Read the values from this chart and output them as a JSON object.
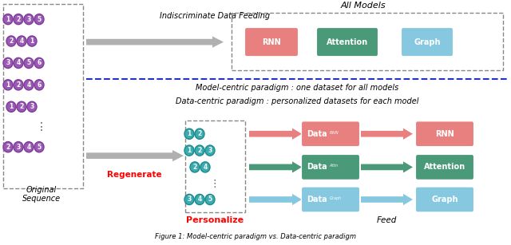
{
  "bg_color": "#ffffff",
  "fig_width": 6.4,
  "fig_height": 3.07,
  "node_color_purple": "#9b59b6",
  "node_border_purple": "#7d3c98",
  "node_color_teal": "#3aacb0",
  "node_border_teal": "#1a8a8d",
  "node_text_color": "#ffffff",
  "box_rnn_color": "#e88080",
  "box_attention_color": "#4a9a7a",
  "box_graph_color": "#85c8e0",
  "box_text_color": "#ffffff",
  "arrow_gray": "#b0b0b0",
  "arrow_pink": "#e88080",
  "arrow_green": "#4a9a7a",
  "arrow_blue": "#85c8e0",
  "dashed_border_color": "#888888",
  "divider_color": "#2233cc",
  "label_all_models": "All Models",
  "label_model_centric": "Model-centric paradigm : one dataset for all models",
  "label_data_centric": "Data-centric paradigm : personalized datasets for each model",
  "label_indiscriminate": "Indiscriminate Data Feeding",
  "label_regenerate": "Regenerate",
  "label_personalize": "Personalize",
  "label_feed": "Feed",
  "label_original": "Original\nSequence",
  "label_rnn": "RNN",
  "label_attention": "Attention",
  "label_graph": "Graph"
}
